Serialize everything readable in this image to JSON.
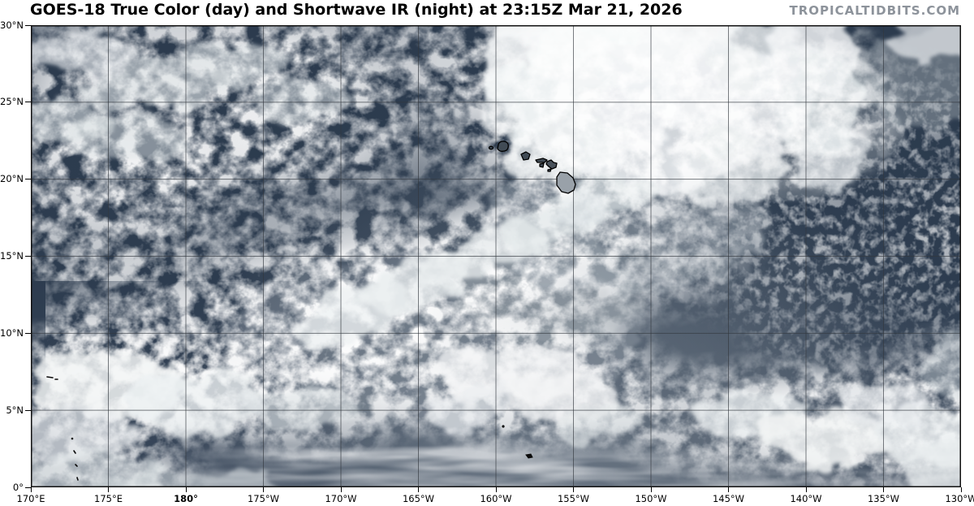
{
  "header": {
    "title": "GOES-18 True Color (day) and Shortwave IR (night) at 23:15Z Mar 21, 2026",
    "brand": "TROPICALTIDBITS.COM"
  },
  "map": {
    "satellite": "GOES-18",
    "product": "True Color (day) and Shortwave IR (night)",
    "valid_time": "23:15Z Mar 21, 2026",
    "lat_ticks": [
      "30°N",
      "25°N",
      "20°N",
      "15°N",
      "10°N",
      "5°N",
      "0°"
    ],
    "lon_ticks": [
      "170°E",
      "175°E",
      "180°",
      "175°W",
      "170°W",
      "165°W",
      "160°W",
      "155°W",
      "150°W",
      "145°W",
      "140°W",
      "135°W",
      "130°W"
    ],
    "lon_bold": "180°",
    "colors": {
      "ocean": "#2d3c4f",
      "sun_glint": "#77828e",
      "cloud": "#f2f4f5",
      "grid_line": "#383d44",
      "coastline": "#000000",
      "title_text": "#000000",
      "brand_text": "#8d939b"
    }
  }
}
